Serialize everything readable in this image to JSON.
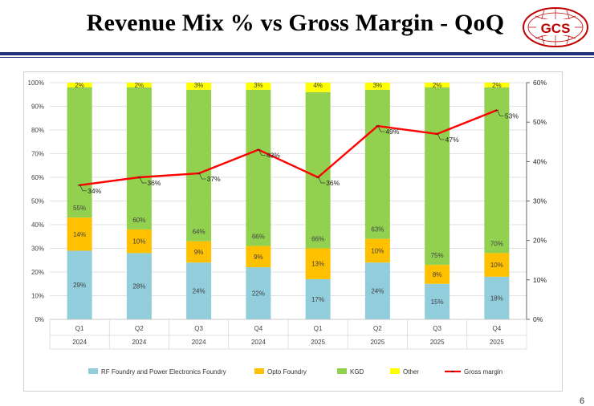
{
  "slide": {
    "title": "Revenue Mix % vs Gross Margin -  QoQ",
    "logo_text": "GCS",
    "page_number": "6"
  },
  "colors": {
    "rf": "#92cddc",
    "opto": "#ffc000",
    "kgd": "#92d050",
    "other": "#ffff00",
    "margin_line": "#ff0000",
    "title_rule": "#1f2f7a",
    "logo": "#c00000"
  },
  "chart_data": {
    "type": "bar",
    "stacked": true,
    "title": "",
    "categories": [
      "Q1",
      "Q2",
      "Q3",
      "Q4",
      "Q1",
      "Q2",
      "Q3",
      "Q4"
    ],
    "years": [
      "2024",
      "2024",
      "2024",
      "2024",
      "2025",
      "2025",
      "2025",
      "2025"
    ],
    "series": [
      {
        "key": "rf",
        "name": "RF Foundry and Power Electronics Foundry",
        "values": [
          29,
          28,
          24,
          22,
          17,
          24,
          15,
          18
        ],
        "labels": [
          "29%",
          "28%",
          "24%",
          "22%",
          "17%",
          "24%",
          "15%",
          "18%"
        ]
      },
      {
        "key": "opto",
        "name": "Opto Foundry",
        "values": [
          14,
          10,
          9,
          9,
          13,
          10,
          8,
          10
        ],
        "labels": [
          "14%",
          "10%",
          "9%",
          "9%",
          "13%",
          "10%",
          "8%",
          "10%"
        ]
      },
      {
        "key": "kgd",
        "name": "KGD",
        "values": [
          55,
          60,
          64,
          66,
          66,
          63,
          75,
          70
        ],
        "labels": [
          "55%",
          "60%",
          "64%",
          "66%",
          "66%",
          "63%",
          "75%",
          "70%"
        ]
      },
      {
        "key": "other",
        "name": "Other",
        "values": [
          2,
          2,
          3,
          3,
          4,
          3,
          2,
          2
        ],
        "labels": [
          "2%",
          "2%",
          "3%",
          "3%",
          "4%",
          "3%",
          "2%",
          "2%"
        ]
      }
    ],
    "line": {
      "name": "Gross margin",
      "axis": "right",
      "values": [
        34,
        36,
        37,
        43,
        36,
        49,
        47,
        53
      ],
      "labels": [
        "34%",
        "36%",
        "37%",
        "43%",
        "36%",
        "49%",
        "47%",
        "53%"
      ]
    },
    "ylim": [
      0,
      100
    ],
    "ylim_right": [
      0,
      60
    ],
    "yticks": [
      "0%",
      "10%",
      "20%",
      "30%",
      "40%",
      "50%",
      "60%",
      "70%",
      "80%",
      "90%",
      "100%"
    ],
    "yticks_right": [
      "0%",
      "10%",
      "20%",
      "30%",
      "40%",
      "50%",
      "60%"
    ],
    "legend_position": "bottom"
  }
}
